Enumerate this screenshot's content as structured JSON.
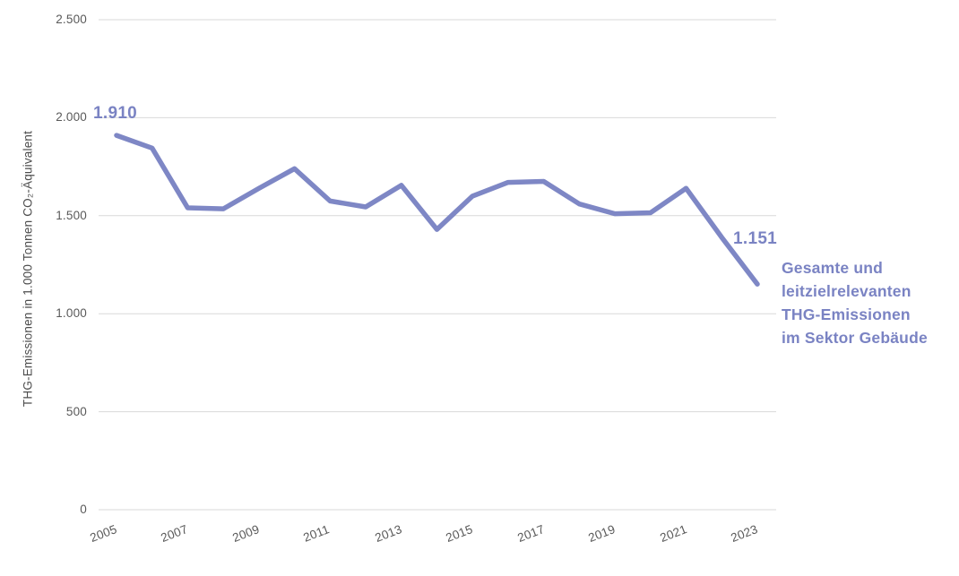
{
  "colors": {
    "accent": "#7E87C5",
    "accent_text": "#7A83C3",
    "grid": "#D9D9D9",
    "tick_text": "#595959",
    "axis_title_text": "#4D4D4D",
    "background": "#FFFFFF"
  },
  "chart_data": {
    "type": "line",
    "title": "",
    "xlabel": "",
    "ylabel": "THG-Emissionen in 1.000 Tonnen CO₂-Äquivalent",
    "x": [
      2005,
      2006,
      2007,
      2008,
      2009,
      2010,
      2011,
      2012,
      2013,
      2014,
      2015,
      2016,
      2017,
      2018,
      2019,
      2020,
      2021,
      2022,
      2023
    ],
    "series": [
      {
        "name": "Gesamte und leitzielrelevanten THG-Emissionen im Sektor Gebäude",
        "values": [
          1910,
          1845,
          1540,
          1535,
          1640,
          1740,
          1575,
          1545,
          1655,
          1430,
          1600,
          1670,
          1675,
          1560,
          1510,
          1515,
          1640,
          1390,
          1151
        ]
      }
    ],
    "x_tick_labels": [
      "2005",
      "2007",
      "2009",
      "2011",
      "2013",
      "2015",
      "2017",
      "2019",
      "2021",
      "2023"
    ],
    "y_ticks": [
      0,
      500,
      1000,
      1500,
      2000,
      2500
    ],
    "y_tick_labels": [
      "0",
      "500",
      "1.000",
      "1.500",
      "2.000",
      "2.500"
    ],
    "ylim": [
      0,
      2500
    ],
    "grid": "horizontal-only",
    "legend_position": "right-annotation",
    "first_point_label": "1.910",
    "last_point_label": "1.151",
    "annotation_text": "Gesamte und\nleitzielrelevanten\nTHG-Emissionen\nim Sektor Gebäude"
  }
}
